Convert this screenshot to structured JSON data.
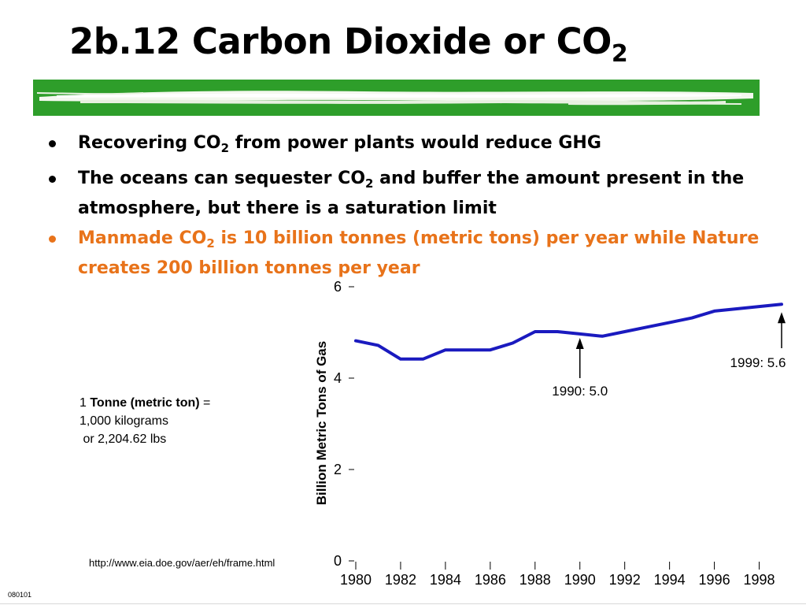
{
  "slide": {
    "title": {
      "main": "2b.12 Carbon Dioxide or CO",
      "sub": "2"
    },
    "bullets": [
      {
        "parts": [
          {
            "t": "Recovering CO"
          },
          {
            "t": "2",
            "sub": true
          },
          {
            "t": " from power plants would reduce GHG"
          }
        ],
        "color": "#000000"
      },
      {
        "parts": [
          {
            "t": "The oceans can sequester CO"
          },
          {
            "t": "2",
            "sub": true
          },
          {
            "t": " and buffer the amount present in the atmosphere, but there is a saturation limit"
          }
        ],
        "color": "#000000"
      },
      {
        "parts": [
          {
            "t": "Manmade CO"
          },
          {
            "t": "2",
            "sub": true
          },
          {
            "t": " is 10 billion tonnes (metric tons) per year while Nature creates 200 billion tonnes per year"
          }
        ],
        "color": "#E8731A"
      }
    ],
    "tonne_note": {
      "prefix": "1 ",
      "bold": "Tonne (metric ton)",
      "suffix": " =",
      "line2": "1,000 kilograms",
      "line3": " or 2,204.62 lbs"
    },
    "source_url": "http://www.eia.doe.gov/aer/eh/frame.html",
    "slide_code": "080101",
    "colors": {
      "accent_green": "#2E9E2A",
      "bullet_orange": "#E8731A",
      "line_blue": "#1A1ABF"
    }
  },
  "chart_data": {
    "type": "line",
    "ylabel": "Billion Metric Tons of Gas",
    "ylim": [
      0,
      6
    ],
    "yticks": [
      0,
      2,
      4,
      6
    ],
    "xlim": [
      1980,
      1999
    ],
    "xticks": [
      1980,
      1982,
      1984,
      1986,
      1988,
      1990,
      1992,
      1994,
      1996,
      1998
    ],
    "series": [
      {
        "x": [
          1980,
          1981,
          1982,
          1983,
          1984,
          1985,
          1986,
          1987,
          1988,
          1989,
          1990,
          1991,
          1992,
          1993,
          1994,
          1995,
          1996,
          1997,
          1998,
          1999
        ],
        "values": [
          4.8,
          4.7,
          4.4,
          4.4,
          4.6,
          4.6,
          4.6,
          4.75,
          5.0,
          5.0,
          4.95,
          4.9,
          5.0,
          5.1,
          5.2,
          5.3,
          5.45,
          5.5,
          5.55,
          5.6
        ]
      }
    ],
    "annotations": [
      {
        "x": 1990,
        "y": 5.0,
        "label": "1990: 5.0"
      },
      {
        "x": 1999,
        "y": 5.6,
        "label": "1999: 5.6"
      }
    ],
    "grid": false
  }
}
